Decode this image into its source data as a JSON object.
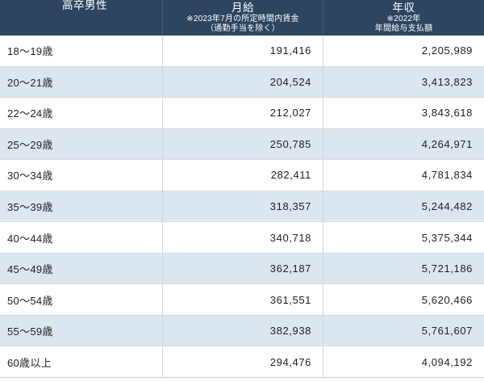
{
  "colors": {
    "page_bg": "#ffffff",
    "header_bg": "#2e4561",
    "header_text": "#ffffff",
    "row_bg": "#ffffff",
    "alt_row_bg": "#dce6f0",
    "border": "#d9d9d9",
    "text": "#1f1f1f"
  },
  "table": {
    "header": {
      "category": "高卒男性",
      "monthly_title": "月給",
      "monthly_note1": "※2023年7月の所定時間内賃金",
      "monthly_note2": "（通勤手当を除く）",
      "annual_title": "年収",
      "annual_note1": "※2022年",
      "annual_note2": "年間給与支払額"
    },
    "rows": [
      {
        "age": "18〜19歳",
        "monthly": "191,416",
        "annual": "2,205,989"
      },
      {
        "age": "20〜21歳",
        "monthly": "204,524",
        "annual": "3,413,823"
      },
      {
        "age": "22〜24歳",
        "monthly": "212,027",
        "annual": "3,843,618"
      },
      {
        "age": "25〜29歳",
        "monthly": "250,785",
        "annual": "4,264,971"
      },
      {
        "age": "30〜34歳",
        "monthly": "282,411",
        "annual": "4,781,834"
      },
      {
        "age": "35〜39歳",
        "monthly": "318,357",
        "annual": "5,244,482"
      },
      {
        "age": "40〜44歳",
        "monthly": "340,718",
        "annual": "5,375,344"
      },
      {
        "age": "45〜49歳",
        "monthly": "362,187",
        "annual": "5,721,186"
      },
      {
        "age": "50〜54歳",
        "monthly": "361,551",
        "annual": "5,620,466"
      },
      {
        "age": "55〜59歳",
        "monthly": "382,938",
        "annual": "5,761,607"
      },
      {
        "age": "60歳以上",
        "monthly": "294,476",
        "annual": "4,094,192"
      }
    ]
  },
  "chart_data": {
    "type": "table",
    "title": "高卒男性",
    "columns": [
      "高卒男性",
      "月給 ※2023年7月の所定時間内賃金（通勤手当を除く）",
      "年収 ※2022年 年間給与支払額"
    ],
    "categories": [
      "18〜19歳",
      "20〜21歳",
      "22〜24歳",
      "25〜29歳",
      "30〜34歳",
      "35〜39歳",
      "40〜44歳",
      "45〜49歳",
      "50〜54歳",
      "55〜59歳",
      "60歳以上"
    ],
    "series": [
      {
        "name": "月給",
        "values": [
          191416,
          204524,
          212027,
          250785,
          282411,
          318357,
          340718,
          362187,
          361551,
          382938,
          294476
        ]
      },
      {
        "name": "年収",
        "values": [
          2205989,
          3413823,
          3843618,
          4264971,
          4781834,
          5244482,
          5375344,
          5721186,
          5620466,
          5761607,
          4094192
        ]
      }
    ],
    "legend_position": "none",
    "grid": true
  }
}
